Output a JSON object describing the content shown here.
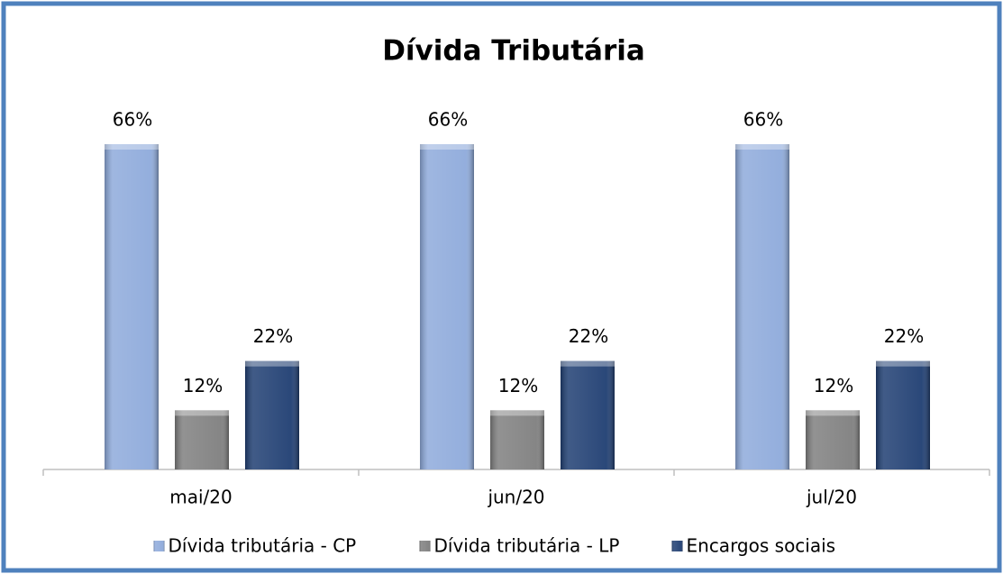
{
  "chart_data": {
    "type": "bar",
    "title": "Dívida Tributária",
    "categories": [
      "mai/20",
      "jun/20",
      "jul/20"
    ],
    "series": [
      {
        "name": "Dívida tributária - CP",
        "color": "#8eaadb",
        "values": [
          66,
          66,
          66
        ],
        "value_labels": [
          "66%",
          "66%",
          "66%"
        ]
      },
      {
        "name": "Dívida tributária - LP",
        "color": "#7f7f7f",
        "values": [
          12,
          12,
          12
        ],
        "value_labels": [
          "12%",
          "12%",
          "12%"
        ]
      },
      {
        "name": "Encargos sociais",
        "color": "#1f3e72",
        "values": [
          22,
          22,
          22
        ],
        "value_labels": [
          "22%",
          "22%",
          "22%"
        ]
      }
    ],
    "legend": "bottom"
  }
}
